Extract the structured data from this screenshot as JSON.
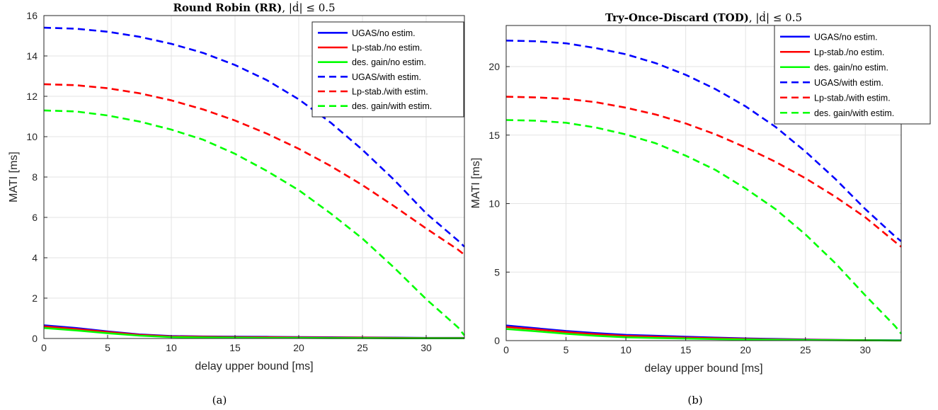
{
  "chart_data": [
    {
      "type": "line",
      "title": "Round Robin (RR)",
      "title_math": ", |ḋ| ≤ 0.5",
      "xlabel": "delay upper bound [ms]",
      "ylabel": "MATI [ms]",
      "caption": "(a)",
      "xlim": [
        0,
        33
      ],
      "ylim": [
        0,
        16
      ],
      "xticks": [
        0,
        5,
        10,
        15,
        20,
        25,
        30
      ],
      "yticks": [
        0,
        2,
        4,
        6,
        8,
        10,
        12,
        14,
        16
      ],
      "grid": true,
      "legend_position": "top-right",
      "x": [
        0,
        2.5,
        5,
        7.5,
        10,
        12.5,
        15,
        17.5,
        20,
        22.5,
        25,
        27.5,
        30,
        32.5,
        33
      ],
      "series": [
        {
          "name": "UGAS/no estim.",
          "color": "#0000ff",
          "dash": "solid",
          "values": [
            0.65,
            0.52,
            0.35,
            0.2,
            0.12,
            0.1,
            0.09,
            0.08,
            0.07,
            0.06,
            0.05,
            0.04,
            0.03,
            0.03,
            0.03
          ]
        },
        {
          "name": "Lp-stab./no estim.",
          "color": "#ff0000",
          "dash": "solid",
          "values": [
            0.6,
            0.47,
            0.32,
            0.18,
            0.1,
            0.08,
            0.07,
            0.06,
            0.05,
            0.04,
            0.04,
            0.03,
            0.02,
            0.02,
            0.02
          ]
        },
        {
          "name": "des. gain/no estim.",
          "color": "#00ff00",
          "dash": "solid",
          "values": [
            0.52,
            0.4,
            0.26,
            0.14,
            0.07,
            0.05,
            0.04,
            0.03,
            0.03,
            0.02,
            0.02,
            0.01,
            0.01,
            0.01,
            0.01
          ]
        },
        {
          "name": "UGAS/with estim.",
          "color": "#0000ff",
          "dash": "dashed",
          "values": [
            15.4,
            15.35,
            15.2,
            14.95,
            14.6,
            14.15,
            13.55,
            12.8,
            11.85,
            10.7,
            9.35,
            7.85,
            6.2,
            4.85,
            4.55
          ]
        },
        {
          "name": "Lp-stab./with estim.",
          "color": "#ff0000",
          "dash": "dashed",
          "values": [
            12.6,
            12.55,
            12.4,
            12.15,
            11.8,
            11.35,
            10.8,
            10.15,
            9.4,
            8.55,
            7.6,
            6.55,
            5.45,
            4.4,
            4.15
          ]
        },
        {
          "name": "des. gain/with estim.",
          "color": "#00ff00",
          "dash": "dashed",
          "values": [
            11.3,
            11.25,
            11.05,
            10.75,
            10.35,
            9.85,
            9.15,
            8.3,
            7.35,
            6.2,
            4.95,
            3.5,
            1.95,
            0.55,
            0.15
          ]
        }
      ]
    },
    {
      "type": "line",
      "title": "Try-Once-Discard (TOD)",
      "title_math": ", |ḋ| ≤ 0.5",
      "xlabel": "delay upper bound [ms]",
      "ylabel": "MATI [ms]",
      "caption": "(b)",
      "xlim": [
        0,
        33
      ],
      "ylim": [
        0,
        23
      ],
      "xticks": [
        0,
        5,
        10,
        15,
        20,
        25,
        30
      ],
      "yticks": [
        0,
        5,
        10,
        15,
        20
      ],
      "grid": true,
      "legend_position": "top-right",
      "x": [
        0,
        2.5,
        5,
        7.5,
        10,
        12.5,
        15,
        17.5,
        20,
        22.5,
        25,
        27.5,
        30,
        32.5,
        33
      ],
      "series": [
        {
          "name": "UGAS/no estim.",
          "color": "#0000ff",
          "dash": "solid",
          "values": [
            1.1,
            0.9,
            0.7,
            0.55,
            0.42,
            0.35,
            0.28,
            0.22,
            0.16,
            0.12,
            0.08,
            0.05,
            0.03,
            0.02,
            0.02
          ]
        },
        {
          "name": "Lp-stab./no estim.",
          "color": "#ff0000",
          "dash": "solid",
          "values": [
            1.0,
            0.82,
            0.62,
            0.46,
            0.34,
            0.28,
            0.22,
            0.17,
            0.12,
            0.09,
            0.06,
            0.04,
            0.02,
            0.01,
            0.01
          ]
        },
        {
          "name": "des. gain/no estim.",
          "color": "#00ff00",
          "dash": "solid",
          "values": [
            0.85,
            0.68,
            0.5,
            0.35,
            0.24,
            0.19,
            0.15,
            0.11,
            0.08,
            0.06,
            0.04,
            0.03,
            0.02,
            0.01,
            0.01
          ]
        },
        {
          "name": "UGAS/with estim.",
          "color": "#0000ff",
          "dash": "dashed",
          "values": [
            21.9,
            21.85,
            21.7,
            21.35,
            20.9,
            20.25,
            19.4,
            18.35,
            17.1,
            15.6,
            13.8,
            11.8,
            9.6,
            7.6,
            7.25
          ]
        },
        {
          "name": "Lp-stab./with estim.",
          "color": "#ff0000",
          "dash": "dashed",
          "values": [
            17.8,
            17.75,
            17.65,
            17.4,
            17.0,
            16.5,
            15.85,
            15.05,
            14.1,
            13.05,
            11.85,
            10.5,
            9.0,
            7.2,
            6.85
          ]
        },
        {
          "name": "des. gain/with estim.",
          "color": "#00ff00",
          "dash": "dashed",
          "values": [
            16.1,
            16.05,
            15.9,
            15.55,
            15.05,
            14.4,
            13.5,
            12.45,
            11.1,
            9.6,
            7.75,
            5.65,
            3.3,
            1.05,
            0.5
          ]
        }
      ]
    }
  ]
}
